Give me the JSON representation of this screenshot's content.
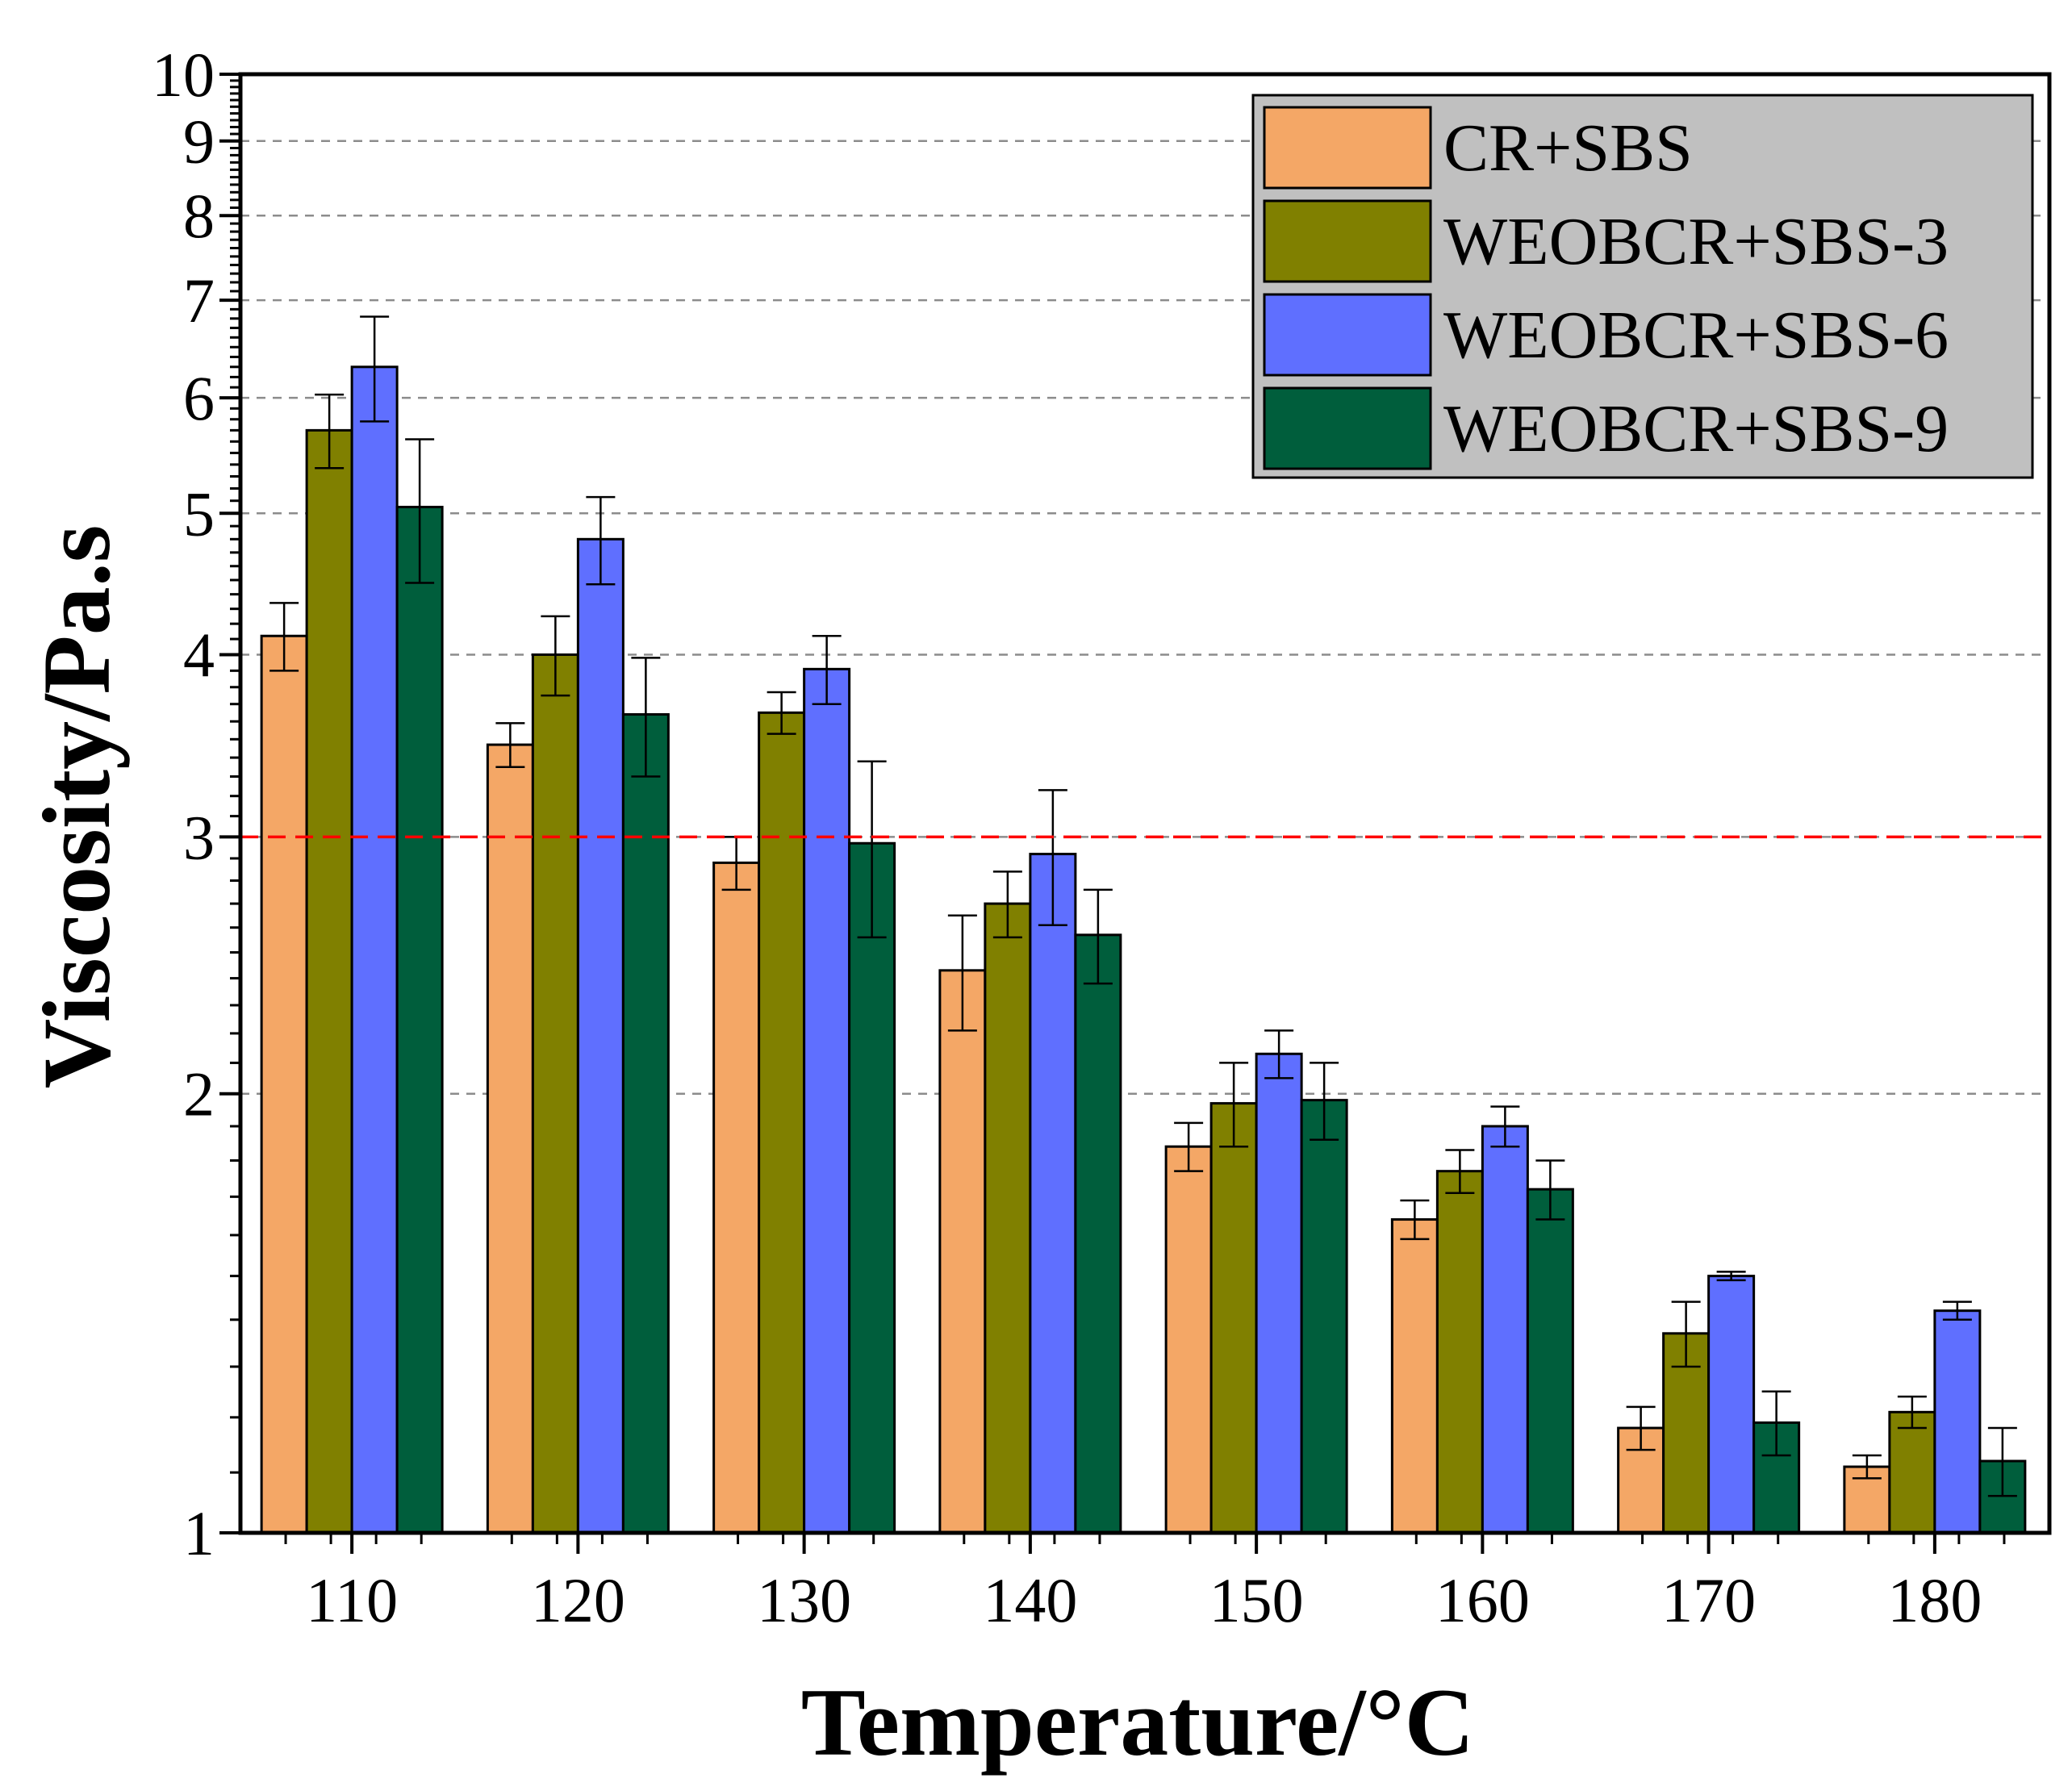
{
  "chart_data": {
    "type": "bar",
    "title": "",
    "xlabel": "Temperature/°C",
    "ylabel": "Viscosity/Pa.s",
    "yscale": "log",
    "ylim": [
      1,
      10
    ],
    "yticks": [
      1,
      2,
      3,
      4,
      5,
      6,
      7,
      8,
      9,
      10
    ],
    "grid": "horizontal dashed",
    "reference_line": {
      "y": 3,
      "color": "#ff0000",
      "style": "dashed"
    },
    "legend_position": "top-right",
    "categories": [
      "110",
      "120",
      "130",
      "140",
      "150",
      "160",
      "170",
      "180"
    ],
    "series": [
      {
        "name": "CR+SBS",
        "color": "#f4a766",
        "values": [
          4.12,
          3.47,
          2.88,
          2.43,
          1.84,
          1.64,
          1.18,
          1.11
        ],
        "errors": [
          0.22,
          0.12,
          0.12,
          0.22,
          0.07,
          0.05,
          0.04,
          0.02
        ]
      },
      {
        "name": "WEOBCR+SBS-3",
        "color": "#808000",
        "values": [
          5.7,
          4.0,
          3.65,
          2.7,
          1.97,
          1.77,
          1.37,
          1.21
        ],
        "errors": [
          0.33,
          0.25,
          0.12,
          0.14,
          0.13,
          0.06,
          0.07,
          0.03
        ]
      },
      {
        "name": "WEOBCR+SBS-6",
        "color": "#5f6fff",
        "values": [
          6.3,
          4.8,
          3.91,
          2.92,
          2.13,
          1.9,
          1.5,
          1.42
        ],
        "errors": [
          0.52,
          0.33,
          0.21,
          0.31,
          0.08,
          0.06,
          0.01,
          0.02
        ]
      },
      {
        "name": "WEOBCR+SBS-9",
        "color": "#005e3c",
        "values": [
          5.05,
          3.64,
          2.97,
          2.57,
          1.98,
          1.72,
          1.19,
          1.12
        ],
        "errors": [
          0.57,
          0.34,
          0.41,
          0.19,
          0.12,
          0.08,
          0.06,
          0.06
        ]
      }
    ]
  }
}
